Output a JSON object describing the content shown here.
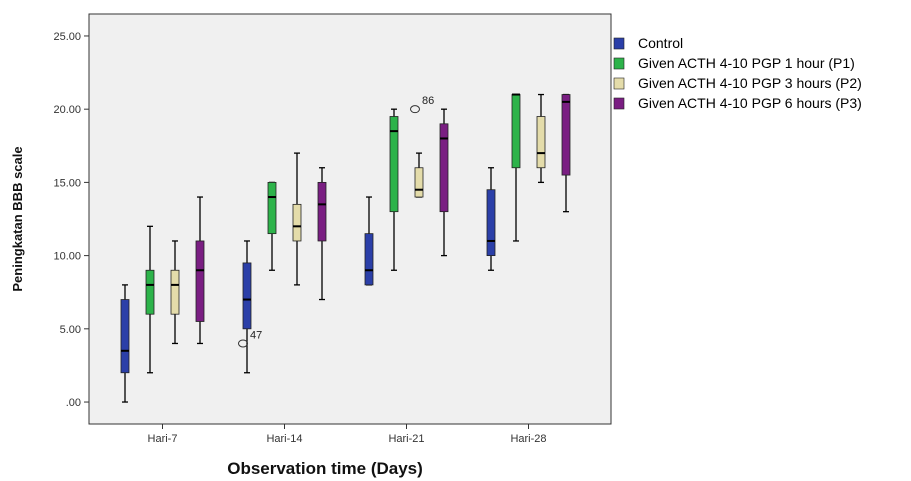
{
  "chart_data": {
    "type": "boxplot",
    "title": "",
    "xlabel": "Observation time (Days)",
    "ylabel": "Peningkatan BBB scale",
    "ylim": [
      -1.5,
      26.5
    ],
    "yticks": [
      0,
      5,
      10,
      15,
      20,
      25
    ],
    "ytick_labels": [
      ".00",
      "5.00",
      "10.00",
      "15.00",
      "20.00",
      "25.00"
    ],
    "categories": [
      "Hari-7",
      "Hari-14",
      "Hari-21",
      "Hari-28"
    ],
    "legend_position": "right",
    "grid": false,
    "series": [
      {
        "name": "Control",
        "color": "#2b3fa8",
        "boxes": [
          {
            "min": 0,
            "q1": 2,
            "median": 3.5,
            "q3": 7,
            "max": 8
          },
          {
            "min": 2,
            "q1": 5,
            "median": 7,
            "q3": 9.5,
            "max": 11
          },
          {
            "min": 8,
            "q1": 8,
            "median": 9,
            "q3": 11.5,
            "max": 14
          },
          {
            "min": 9,
            "q1": 10,
            "median": 11,
            "q3": 14.5,
            "max": 16
          }
        ]
      },
      {
        "name": "Given ACTH 4-10 PGP 1 hour (P1)",
        "color": "#2db34a",
        "boxes": [
          {
            "min": 2,
            "q1": 6,
            "median": 8,
            "q3": 9,
            "max": 12
          },
          {
            "min": 9,
            "q1": 11.5,
            "median": 14,
            "q3": 15,
            "max": 15
          },
          {
            "min": 9,
            "q1": 13,
            "median": 18.5,
            "q3": 19.5,
            "max": 20
          },
          {
            "min": 11,
            "q1": 16,
            "median": 21,
            "q3": 21,
            "max": 21
          }
        ]
      },
      {
        "name": "Given ACTH 4-10 PGP 3 hours (P2)",
        "color": "#e4dcaa",
        "boxes": [
          {
            "min": 4,
            "q1": 6,
            "median": 8,
            "q3": 9,
            "max": 11
          },
          {
            "min": 8,
            "q1": 11,
            "median": 12,
            "q3": 13.5,
            "max": 17
          },
          {
            "min": 14,
            "q1": 14,
            "median": 14.5,
            "q3": 16,
            "max": 17
          },
          {
            "min": 15,
            "q1": 16,
            "median": 17,
            "q3": 19.5,
            "max": 21
          }
        ]
      },
      {
        "name": "Given ACTH 4-10 PGP 6 hours (P3)",
        "color": "#7a1e82",
        "boxes": [
          {
            "min": 4,
            "q1": 5.5,
            "median": 9,
            "q3": 11,
            "max": 14
          },
          {
            "min": 7,
            "q1": 11,
            "median": 13.5,
            "q3": 15,
            "max": 16
          },
          {
            "min": 10,
            "q1": 13,
            "median": 18,
            "q3": 19,
            "max": 20
          },
          {
            "min": 13,
            "q1": 15.5,
            "median": 20.5,
            "q3": 21,
            "max": 21
          }
        ]
      }
    ],
    "outliers": [
      {
        "series": 0,
        "category": 1,
        "value": 4,
        "label": "47"
      },
      {
        "series": 2,
        "category": 2,
        "value": 20,
        "label": "86"
      }
    ]
  }
}
